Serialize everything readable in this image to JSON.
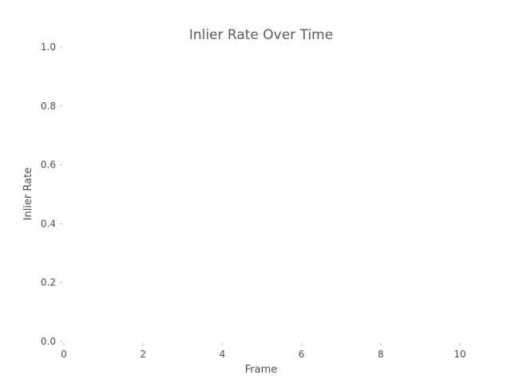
{
  "chart_data": {
    "type": "line",
    "title": "Inlier Rate Over Time",
    "xlabel": "Frame",
    "ylabel": "Inlier Rate",
    "xlim": [
      0,
      10
    ],
    "ylim": [
      0.0,
      1.0
    ],
    "x_ticks": [
      "0",
      "2",
      "4",
      "6",
      "8",
      "10"
    ],
    "y_ticks": [
      "0.0",
      "0.2",
      "0.4",
      "0.6",
      "0.8",
      "1.0"
    ],
    "grid": false,
    "series": []
  },
  "colors": {
    "background": "#ffffff",
    "text": "#4d4d4d"
  }
}
